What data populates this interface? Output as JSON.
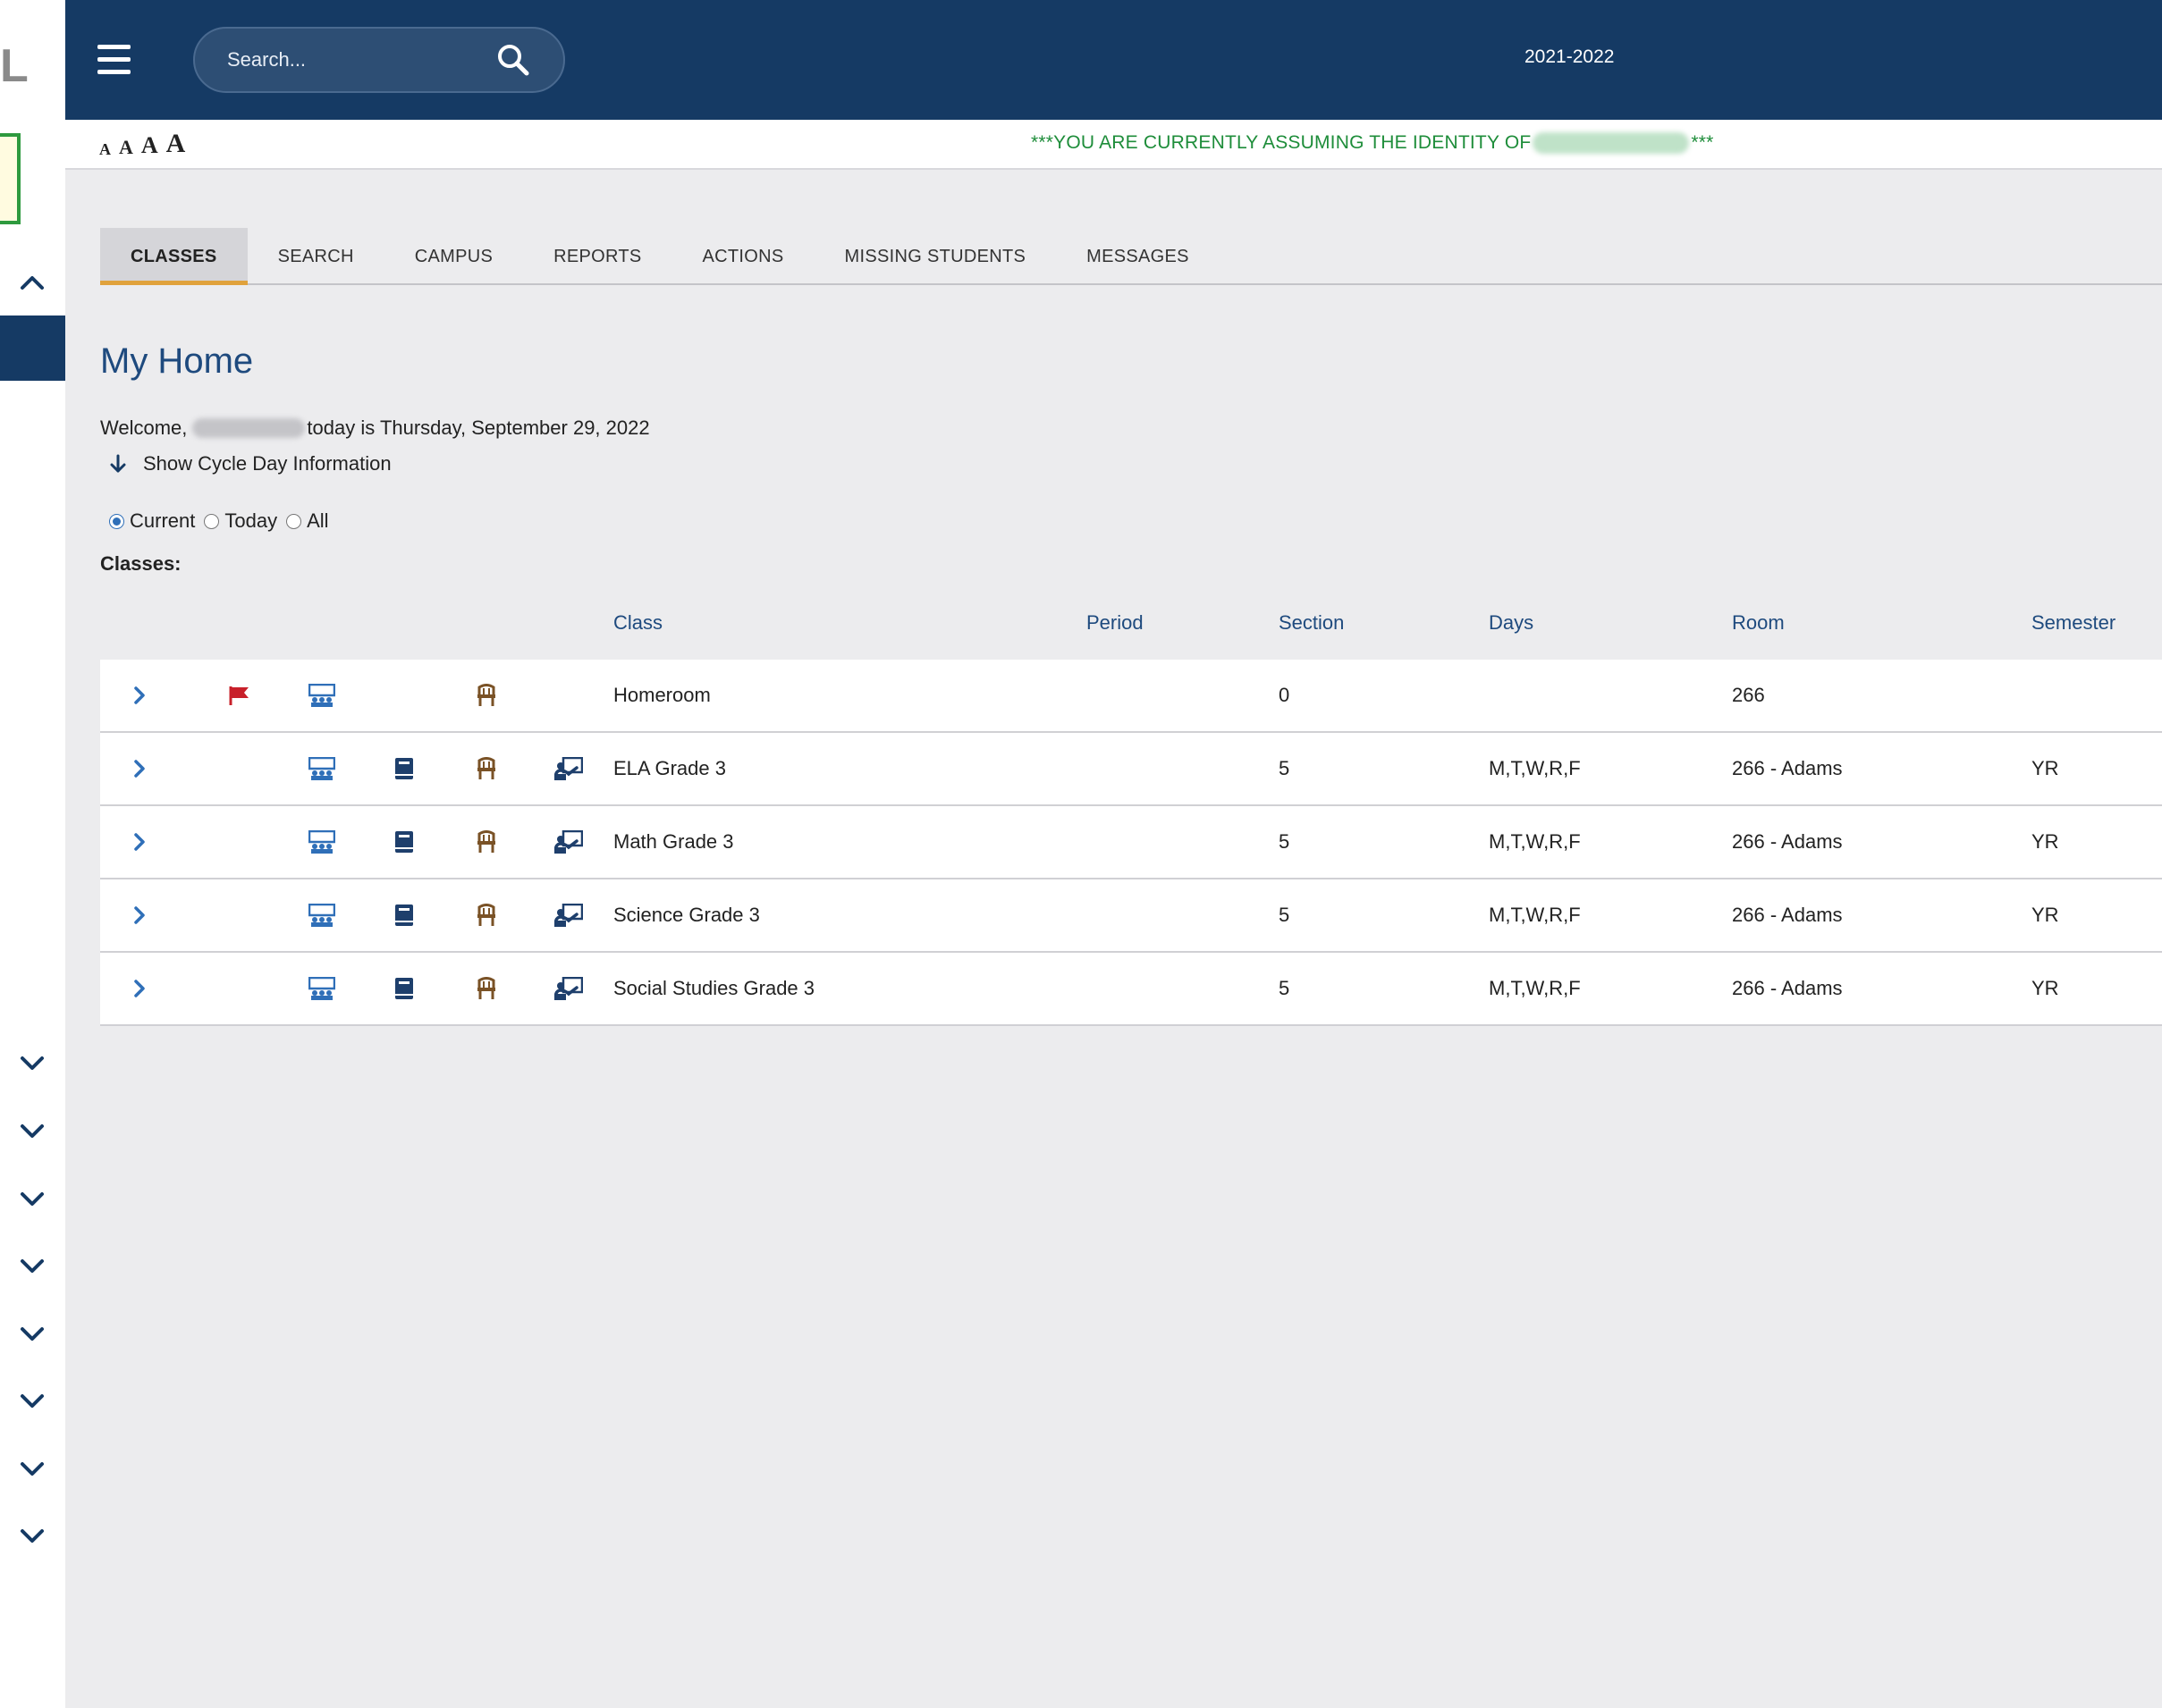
{
  "sidebar": {
    "logo_fragment": "L",
    "chevrons": [
      "chevron-up-icon",
      "chevron-down-icon",
      "chevron-down-icon",
      "chevron-down-icon",
      "chevron-down-icon",
      "chevron-down-icon",
      "chevron-down-icon",
      "chevron-down-icon",
      "chevron-down-icon"
    ]
  },
  "header": {
    "search_placeholder": "Search...",
    "school_year": "2021-2022"
  },
  "identity_bar": {
    "font_size_options": [
      "A",
      "A",
      "A",
      "A"
    ],
    "identity_prefix": "***YOU ARE CURRENTLY ASSUMING THE IDENTITY OF",
    "identity_suffix": "***"
  },
  "tabs": [
    {
      "label": "CLASSES",
      "active": true
    },
    {
      "label": "SEARCH",
      "active": false
    },
    {
      "label": "CAMPUS",
      "active": false
    },
    {
      "label": "REPORTS",
      "active": false
    },
    {
      "label": "ACTIONS",
      "active": false
    },
    {
      "label": "MISSING STUDENTS",
      "active": false
    },
    {
      "label": "MESSAGES",
      "active": false
    }
  ],
  "main": {
    "title": "My Home",
    "welcome_prefix": "Welcome,",
    "welcome_suffix": "today is Thursday, September 29, 2022",
    "cycle_toggle": "Show Cycle Day Information",
    "filters": [
      {
        "label": "Current",
        "checked": true
      },
      {
        "label": "Today",
        "checked": false
      },
      {
        "label": "All",
        "checked": false
      }
    ],
    "classes_label": "Classes:"
  },
  "table": {
    "columns": {
      "class": "Class",
      "period": "Period",
      "section": "Section",
      "days": "Days",
      "room": "Room",
      "semester": "Semester"
    },
    "rows": [
      {
        "class": "Homeroom",
        "period": "",
        "section": "0",
        "days": "",
        "room": "266",
        "semester": "",
        "flag": true,
        "gradebook": false,
        "lesson": false
      },
      {
        "class": "ELA Grade 3",
        "period": "",
        "section": "5",
        "days": "M,T,W,R,F",
        "room": "266 - Adams",
        "semester": "YR",
        "flag": false,
        "gradebook": true,
        "lesson": true
      },
      {
        "class": "Math Grade 3",
        "period": "",
        "section": "5",
        "days": "M,T,W,R,F",
        "room": "266 - Adams",
        "semester": "YR",
        "flag": false,
        "gradebook": true,
        "lesson": true
      },
      {
        "class": "Science Grade 3",
        "period": "",
        "section": "5",
        "days": "M,T,W,R,F",
        "room": "266 - Adams",
        "semester": "YR",
        "flag": false,
        "gradebook": true,
        "lesson": true
      },
      {
        "class": "Social Studies Grade 3",
        "period": "",
        "section": "5",
        "days": "M,T,W,R,F",
        "room": "266 - Adams",
        "semester": "YR",
        "flag": false,
        "gradebook": true,
        "lesson": true
      }
    ]
  },
  "colors": {
    "header_bg": "#153a64",
    "accent_tab": "#e0a23c",
    "identity_text": "#1e8d3a",
    "link_blue": "#1e4a7e",
    "icon_blue": "#2f6fb8",
    "flag_red": "#c8202a",
    "seat_brown": "#7a5226"
  }
}
